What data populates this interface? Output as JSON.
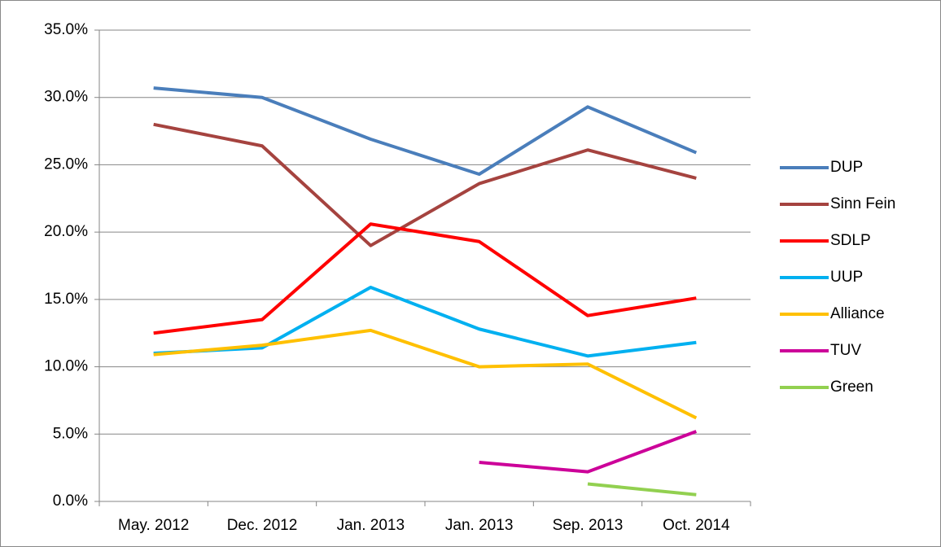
{
  "chart_data": {
    "type": "line",
    "categories": [
      "May. 2012",
      "Dec. 2012",
      "Jan. 2013",
      "Jan. 2013",
      "Sep. 2013",
      "Oct. 2014"
    ],
    "series": [
      {
        "name": "DUP",
        "color": "#4a7ebb",
        "values": [
          30.7,
          30.0,
          26.9,
          24.3,
          29.3,
          25.9
        ]
      },
      {
        "name": "Sinn Fein",
        "color": "#a5433f",
        "values": [
          28.0,
          26.4,
          19.0,
          23.6,
          26.1,
          24.0
        ]
      },
      {
        "name": "SDLP",
        "color": "#ff0000",
        "values": [
          12.5,
          13.5,
          20.6,
          19.3,
          13.8,
          15.1
        ]
      },
      {
        "name": "UUP",
        "color": "#00b0f0",
        "values": [
          11.0,
          11.4,
          15.9,
          12.8,
          10.8,
          11.8
        ]
      },
      {
        "name": "Alliance",
        "color": "#ffc000",
        "values": [
          10.9,
          11.6,
          12.7,
          10.0,
          10.2,
          6.2
        ]
      },
      {
        "name": "TUV",
        "color": "#cc0099",
        "values": [
          null,
          null,
          null,
          2.9,
          2.2,
          5.2
        ]
      },
      {
        "name": "Green",
        "color": "#92d050",
        "values": [
          null,
          null,
          null,
          null,
          1.3,
          0.5
        ]
      }
    ],
    "ylim": [
      0,
      35
    ],
    "yticks": [
      {
        "value": 0,
        "label": "0.0%"
      },
      {
        "value": 5,
        "label": "5.0%"
      },
      {
        "value": 10,
        "label": "10.0%"
      },
      {
        "value": 15,
        "label": "15.0%"
      },
      {
        "value": 20,
        "label": "20.0%"
      },
      {
        "value": 25,
        "label": "25.0%"
      },
      {
        "value": 30,
        "label": "30.0%"
      },
      {
        "value": 35,
        "label": "35.0%"
      }
    ],
    "grid": true,
    "legend": "right"
  }
}
